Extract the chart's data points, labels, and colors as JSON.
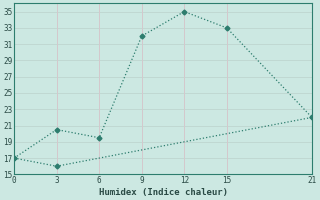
{
  "xlabel": "Humidex (Indice chaleur)",
  "line1_x": [
    0,
    3,
    6,
    9,
    12,
    15,
    21
  ],
  "line1_y": [
    17,
    20.5,
    19.5,
    32,
    35,
    33,
    22
  ],
  "line2_x": [
    0,
    3,
    21
  ],
  "line2_y": [
    17,
    16,
    22
  ],
  "line_color": "#2d7d6e",
  "bg_color": "#cce8e2",
  "grid_color_h": "#c0d8d2",
  "grid_color_v": "#d4c8cc",
  "xlim": [
    0,
    21
  ],
  "ylim": [
    15,
    36
  ],
  "xticks": [
    0,
    3,
    6,
    9,
    12,
    15,
    21
  ],
  "yticks": [
    15,
    17,
    19,
    21,
    23,
    25,
    27,
    29,
    31,
    33,
    35
  ],
  "font_color": "#2a4a45",
  "tick_fontsize": 5.5,
  "xlabel_fontsize": 6.5
}
